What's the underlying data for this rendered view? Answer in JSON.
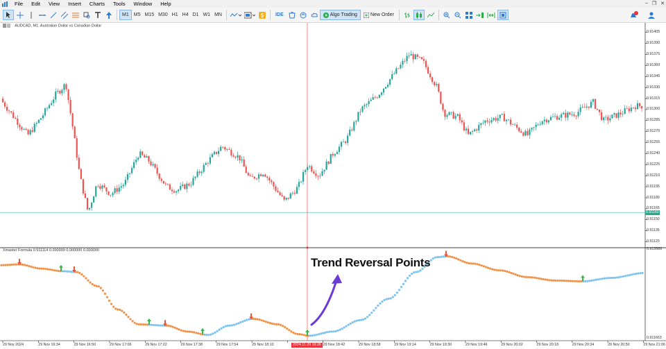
{
  "menu": [
    "File",
    "Edit",
    "View",
    "Insert",
    "Charts",
    "Tools",
    "Window",
    "Help"
  ],
  "window_controls": [
    "–",
    "❐",
    "✕"
  ],
  "toolbar": {
    "timeframes": [
      "M1",
      "M5",
      "M15",
      "M30",
      "H1",
      "H4",
      "D1",
      "W1",
      "MN"
    ],
    "selected_timeframe": "M1",
    "ide_label": "IDE",
    "algo_label": "Algo Trading",
    "new_order_label": "New Order"
  },
  "main_chart": {
    "header": "AUDCAD, M1:  Australian Dollar vs Canadian Dollar",
    "current_price": "0.91160",
    "price_labels": [
      "0.91405",
      "0.91390",
      "0.91375",
      "0.91360",
      "0.91345",
      "0.91330",
      "0.91315",
      "0.91300",
      "0.91285",
      "0.91270",
      "0.91255",
      "0.91240",
      "0.91225",
      "0.91210",
      "0.91195",
      "0.91180",
      "0.91165",
      "0.91150",
      "0.91135",
      "0.91120"
    ]
  },
  "indicator": {
    "header": "Xmaster Formula 0.911114 0.000000 0.000000 0.000000",
    "top_label": "0.913589",
    "bottom_label": "0.911663"
  },
  "time_axis": [
    "29 Nov 2024",
    "29 Nov 16:34",
    "29 Nov 16:50",
    "29 Nov 17:06",
    "29 Nov 17:22",
    "29 Nov 17:38",
    "29 Nov 17:54",
    "29 Nov 18:10",
    "29 Nov 18:26",
    "29 Nov 18:42",
    "29 Nov 18:58",
    "29 Nov 19:14",
    "29 Nov 19:30",
    "29 Nov 19:46",
    "29 Nov 20:02",
    "29 Nov 20:18",
    "29 Nov 20:34",
    "29 Nov 20:50",
    "29 Nov 21:06"
  ],
  "crosshair_time": "2024.11.29 18:26",
  "annotation": "Trend Reversal Points",
  "colors": {
    "bull": "#26a69a",
    "bear": "#ef5350",
    "crosshair": "#f06a6a",
    "indicator_up": "#7cc4ef",
    "indicator_down": "#f0934a",
    "arrow_up": "#3bb54a",
    "arrow_down": "#e8593c",
    "annotation_arrow": "#6a3bd6"
  },
  "chart_data": {
    "type": "candlestick",
    "title": "AUDCAD, M1:  Australian Dollar vs Canadian Dollar",
    "ylim": [
      0.91112,
      0.91418
    ],
    "current_price": 0.9116,
    "close_path_keypoints": [
      {
        "x": 0,
        "close": 0.91315
      },
      {
        "x": 20,
        "close": 0.9129
      },
      {
        "x": 40,
        "close": 0.91265
      },
      {
        "x": 60,
        "close": 0.9129
      },
      {
        "x": 80,
        "close": 0.9132
      },
      {
        "x": 95,
        "close": 0.91335
      },
      {
        "x": 105,
        "close": 0.91275
      },
      {
        "x": 115,
        "close": 0.9121
      },
      {
        "x": 127,
        "close": 0.9116
      },
      {
        "x": 140,
        "close": 0.912
      },
      {
        "x": 160,
        "close": 0.91185
      },
      {
        "x": 180,
        "close": 0.912
      },
      {
        "x": 200,
        "close": 0.9124
      },
      {
        "x": 215,
        "close": 0.9123
      },
      {
        "x": 240,
        "close": 0.91195
      },
      {
        "x": 255,
        "close": 0.9119
      },
      {
        "x": 275,
        "close": 0.912
      },
      {
        "x": 300,
        "close": 0.9123
      },
      {
        "x": 320,
        "close": 0.9125
      },
      {
        "x": 345,
        "close": 0.91235
      },
      {
        "x": 360,
        "close": 0.91205
      },
      {
        "x": 380,
        "close": 0.91215
      },
      {
        "x": 395,
        "close": 0.91195
      },
      {
        "x": 410,
        "close": 0.91175
      },
      {
        "x": 430,
        "close": 0.91195
      },
      {
        "x": 443,
        "close": 0.91225
      },
      {
        "x": 460,
        "close": 0.9121
      },
      {
        "x": 480,
        "close": 0.9124
      },
      {
        "x": 500,
        "close": 0.9126
      },
      {
        "x": 520,
        "close": 0.913
      },
      {
        "x": 545,
        "close": 0.9132
      },
      {
        "x": 565,
        "close": 0.91345
      },
      {
        "x": 590,
        "close": 0.91375
      },
      {
        "x": 610,
        "close": 0.91365
      },
      {
        "x": 630,
        "close": 0.9133
      },
      {
        "x": 640,
        "close": 0.91295
      },
      {
        "x": 660,
        "close": 0.9129
      },
      {
        "x": 675,
        "close": 0.91265
      },
      {
        "x": 700,
        "close": 0.91285
      },
      {
        "x": 725,
        "close": 0.9129
      },
      {
        "x": 745,
        "close": 0.91275
      },
      {
        "x": 760,
        "close": 0.91265
      },
      {
        "x": 780,
        "close": 0.91285
      },
      {
        "x": 800,
        "close": 0.9129
      },
      {
        "x": 830,
        "close": 0.91295
      },
      {
        "x": 855,
        "close": 0.9131
      },
      {
        "x": 870,
        "close": 0.91285
      },
      {
        "x": 895,
        "close": 0.91295
      },
      {
        "x": 915,
        "close": 0.91305
      },
      {
        "x": 930,
        "close": 0.91305
      }
    ],
    "indicator_line": {
      "ylim": [
        0.911663,
        0.913589
      ],
      "points": [
        {
          "x": 0,
          "value": 0.91334
        },
        {
          "x": 28,
          "value": 0.91336
        },
        {
          "x": 60,
          "value": 0.91326
        },
        {
          "x": 90,
          "value": 0.9132
        },
        {
          "x": 110,
          "value": 0.91318
        },
        {
          "x": 140,
          "value": 0.91285
        },
        {
          "x": 170,
          "value": 0.9123
        },
        {
          "x": 200,
          "value": 0.91195
        },
        {
          "x": 240,
          "value": 0.91192
        },
        {
          "x": 270,
          "value": 0.91178
        },
        {
          "x": 300,
          "value": 0.9117
        },
        {
          "x": 330,
          "value": 0.91192
        },
        {
          "x": 365,
          "value": 0.91208
        },
        {
          "x": 400,
          "value": 0.91195
        },
        {
          "x": 430,
          "value": 0.91172
        },
        {
          "x": 445,
          "value": 0.91168
        },
        {
          "x": 480,
          "value": 0.91178
        },
        {
          "x": 520,
          "value": 0.91205
        },
        {
          "x": 560,
          "value": 0.91255
        },
        {
          "x": 600,
          "value": 0.91318
        },
        {
          "x": 630,
          "value": 0.91353
        },
        {
          "x": 645,
          "value": 0.91355
        },
        {
          "x": 680,
          "value": 0.91338
        },
        {
          "x": 720,
          "value": 0.91322
        },
        {
          "x": 760,
          "value": 0.91306
        },
        {
          "x": 800,
          "value": 0.91298
        },
        {
          "x": 840,
          "value": 0.91296
        },
        {
          "x": 880,
          "value": 0.91304
        },
        {
          "x": 930,
          "value": 0.91316
        }
      ],
      "down_segments": [
        [
          0,
          28
        ],
        [
          28,
          88
        ],
        [
          107,
          215
        ],
        [
          238,
          292
        ],
        [
          362,
          445
        ],
        [
          643,
          840
        ]
      ],
      "up_segments": [
        [
          88,
          107
        ],
        [
          215,
          238
        ],
        [
          292,
          362
        ],
        [
          445,
          643
        ],
        [
          840,
          930
        ]
      ],
      "signals": [
        {
          "x": 28,
          "type": "sell"
        },
        {
          "x": 88,
          "type": "buy"
        },
        {
          "x": 107,
          "type": "sell"
        },
        {
          "x": 215,
          "type": "buy"
        },
        {
          "x": 238,
          "type": "sell"
        },
        {
          "x": 292,
          "type": "buy"
        },
        {
          "x": 362,
          "type": "sell"
        },
        {
          "x": 443,
          "type": "buy"
        },
        {
          "x": 643,
          "type": "sell"
        },
        {
          "x": 840,
          "type": "buy"
        }
      ]
    }
  }
}
